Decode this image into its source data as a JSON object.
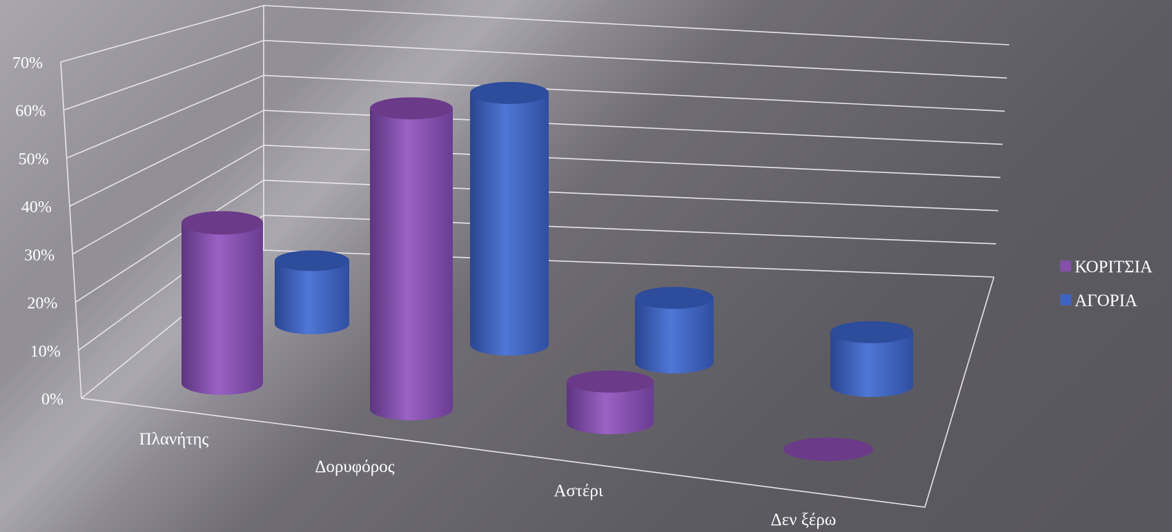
{
  "chart_data": {
    "type": "bar",
    "subtype": "3d-cylinder",
    "categories": [
      "Πλανήτης",
      "Δορυφόρος",
      "Αστέρι",
      "Δεν ξέρω"
    ],
    "series": [
      {
        "name": "ΚΟΡΙΤΣΙΑ",
        "color": "#8450a8",
        "values": [
          33,
          65,
          9,
          0
        ]
      },
      {
        "name": "ΑΓΟΡΙΑ",
        "color": "#3f63c0",
        "values": [
          13,
          56,
          15,
          13
        ]
      }
    ],
    "y_ticks": [
      "0%",
      "10%",
      "20%",
      "30%",
      "40%",
      "50%",
      "60%",
      "70%"
    ],
    "ylim": [
      0,
      70
    ],
    "grid": true,
    "legend_position": "right"
  }
}
